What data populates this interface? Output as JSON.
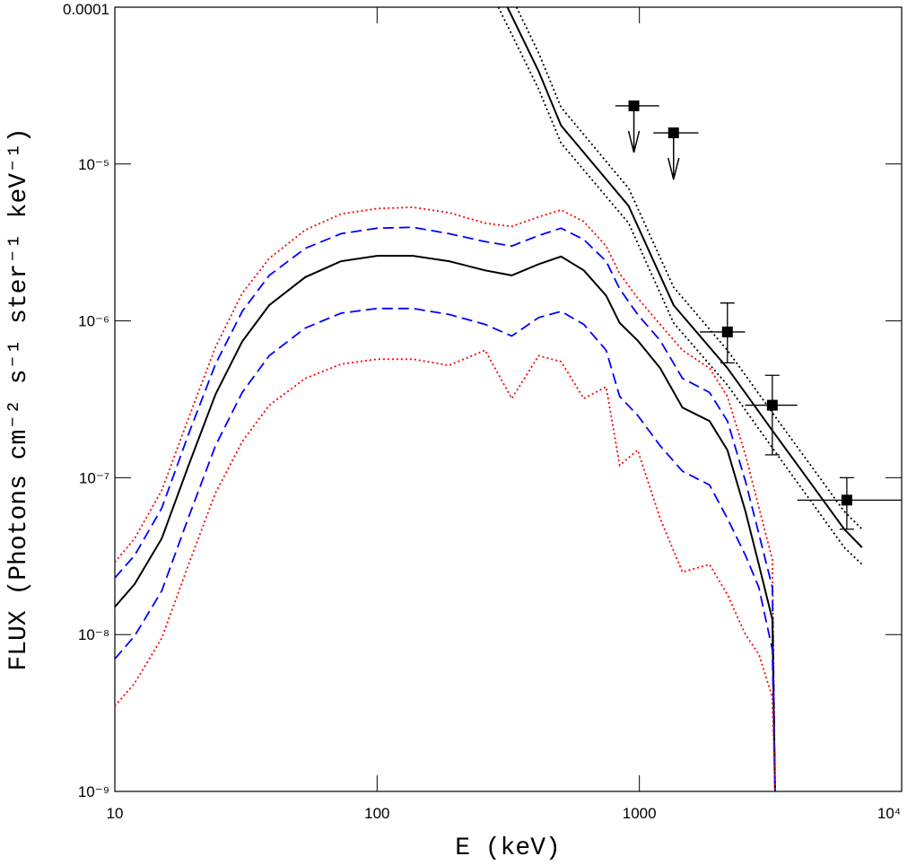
{
  "chart_data": {
    "type": "line",
    "xlabel": "E (keV)",
    "ylabel": "FLUX (Photons cm⁻² s⁻¹ ster⁻¹ keV⁻¹)",
    "xscale": "log",
    "yscale": "log",
    "xlim": [
      10,
      10000
    ],
    "ylim": [
      1e-09,
      0.0001
    ],
    "xticks": [
      10,
      100,
      1000,
      {
        "value": 10000,
        "label": "10⁴"
      }
    ],
    "yticks": [
      {
        "value": 1e-09,
        "label": "10⁻⁹"
      },
      {
        "value": 1e-08,
        "label": "10⁻⁸"
      },
      {
        "value": 1e-07,
        "label": "10⁻⁷"
      },
      {
        "value": 1e-06,
        "label": "10⁻⁶"
      },
      {
        "value": 1e-05,
        "label": "10⁻⁵"
      },
      {
        "value": 0.0001,
        "label": "0.0001"
      }
    ],
    "x": [
      10,
      11.9,
      15.1,
      19.1,
      24.2,
      30.6,
      38.8,
      53.2,
      72.9,
      100,
      137,
      188,
      258,
      326,
      413,
      503,
      614,
      747,
      841,
      985,
      1200,
      1460,
      1850,
      2166,
      2538,
      2853,
      3213,
      3290
    ],
    "series": [
      {
        "color": "#ff0000",
        "style": "dotted",
        "values": [
          2.9e-08,
          4.1e-08,
          8.3e-08,
          2.4e-07,
          6.8e-07,
          1.5e-06,
          2.5e-06,
          3.8e-06,
          4.8e-06,
          5.2e-06,
          5.3e-06,
          4.9e-06,
          4.2e-06,
          4e-06,
          4.6e-06,
          5.1e-06,
          4.3e-06,
          3e-06,
          2e-06,
          1.4e-06,
          9.5e-07,
          6.5e-07,
          5e-07,
          3.3e-07,
          1.4e-07,
          6.5e-08,
          3e-08,
          1e-09
        ]
      },
      {
        "color": "#0000ff",
        "style": "dashed",
        "values": [
          2.3e-08,
          3.2e-08,
          6.4e-08,
          1.9e-07,
          5.3e-07,
          1.15e-06,
          1.95e-06,
          2.9e-06,
          3.6e-06,
          3.9e-06,
          3.95e-06,
          3.6e-06,
          3.2e-06,
          3e-06,
          3.5e-06,
          3.9e-06,
          3.3e-06,
          2.4e-06,
          1.6e-06,
          1.1e-06,
          7.5e-07,
          4.3e-07,
          3.5e-07,
          2.3e-07,
          9.5e-08,
          4.4e-08,
          2e-08,
          1e-09
        ]
      },
      {
        "color": "#000000",
        "style": "solid",
        "values": [
          1.5e-08,
          2.1e-08,
          4.1e-08,
          1.2e-07,
          3.4e-07,
          7.4e-07,
          1.26e-06,
          1.9e-06,
          2.4e-06,
          2.6e-06,
          2.6e-06,
          2.4e-06,
          2.1e-06,
          1.95e-06,
          2.3e-06,
          2.57e-06,
          2.1e-06,
          1.45e-06,
          9.7e-07,
          7.5e-07,
          5e-07,
          2.8e-07,
          2.3e-07,
          1.5e-07,
          6.1e-08,
          2.8e-08,
          1.25e-08,
          1e-09
        ]
      },
      {
        "color": "#0000ff",
        "style": "dashed",
        "values": [
          7e-09,
          9.8e-09,
          1.9e-08,
          5.6e-08,
          1.6e-07,
          3.5e-07,
          6e-07,
          9e-07,
          1.12e-06,
          1.2e-06,
          1.2e-06,
          1.1e-06,
          9.5e-07,
          8e-07,
          1.05e-06,
          1.15e-06,
          9.5e-07,
          6.5e-07,
          3.3e-07,
          2.5e-07,
          1.6e-07,
          1.1e-07,
          9e-08,
          5.5e-08,
          3.2e-08,
          2e-08,
          8e-09,
          1e-09
        ]
      },
      {
        "color": "#ff0000",
        "style": "dotted",
        "values": [
          3.5e-09,
          4.9e-09,
          9.5e-09,
          2.8e-08,
          8e-08,
          1.7e-07,
          2.9e-07,
          4.3e-07,
          5.3e-07,
          5.7e-07,
          5.7e-07,
          5.2e-07,
          6.5e-07,
          3.2e-07,
          6e-07,
          5.5e-07,
          3.2e-07,
          3.8e-07,
          1.2e-07,
          1.5e-07,
          5.5e-08,
          2.5e-08,
          2.8e-08,
          1.8e-08,
          1e-08,
          7.5e-09,
          4e-09,
          1e-09
        ]
      },
      {
        "color": "#000000",
        "style": "solid",
        "x": [
          314,
          413,
          503,
          910,
          1350,
          2166,
          3213,
          6040,
          7060
        ],
        "values": [
          0.0001,
          3.9e-05,
          1.76e-05,
          5.4e-06,
          1.26e-06,
          5e-07,
          2e-07,
          4.7e-08,
          3.6e-08
        ]
      },
      {
        "color": "#000000",
        "style": "dotted",
        "x": [
          340,
          413,
          503,
          910,
          1350,
          2166,
          3213,
          6040,
          7060
        ],
        "values": [
          0.0001,
          5.1e-05,
          2.3e-05,
          7e-06,
          1.64e-06,
          6.5e-07,
          2.6e-07,
          6.1e-08,
          4.7e-08
        ]
      },
      {
        "color": "#000000",
        "style": "dotted",
        "x": [
          290,
          413,
          503,
          910,
          1350,
          2166,
          3213,
          6040,
          7060
        ],
        "values": [
          0.0001,
          3e-05,
          1.36e-05,
          4.2e-06,
          9.7e-07,
          3.9e-07,
          1.55e-07,
          3.6e-08,
          2.8e-08
        ]
      }
    ],
    "points": [
      {
        "x": 953,
        "y": 2.35e-05,
        "xmin": 810,
        "xmax": 1190,
        "upper_limit": true
      },
      {
        "x": 1350,
        "y": 1.58e-05,
        "xmin": 1130,
        "xmax": 1680,
        "upper_limit": true
      },
      {
        "x": 2166,
        "y": 8.5e-07,
        "xmin": 1700,
        "xmax": 2530,
        "ymin": 5.4e-07,
        "ymax": 1.3e-06
      },
      {
        "x": 3213,
        "y": 2.9e-07,
        "xmin": 2530,
        "xmax": 4000,
        "ymin": 1.4e-07,
        "ymax": 4.5e-07
      },
      {
        "x": 6180,
        "y": 7.2e-08,
        "xmin": 4000,
        "xmax": 10000,
        "ymin": 4.7e-08,
        "ymax": 1e-07
      }
    ]
  }
}
